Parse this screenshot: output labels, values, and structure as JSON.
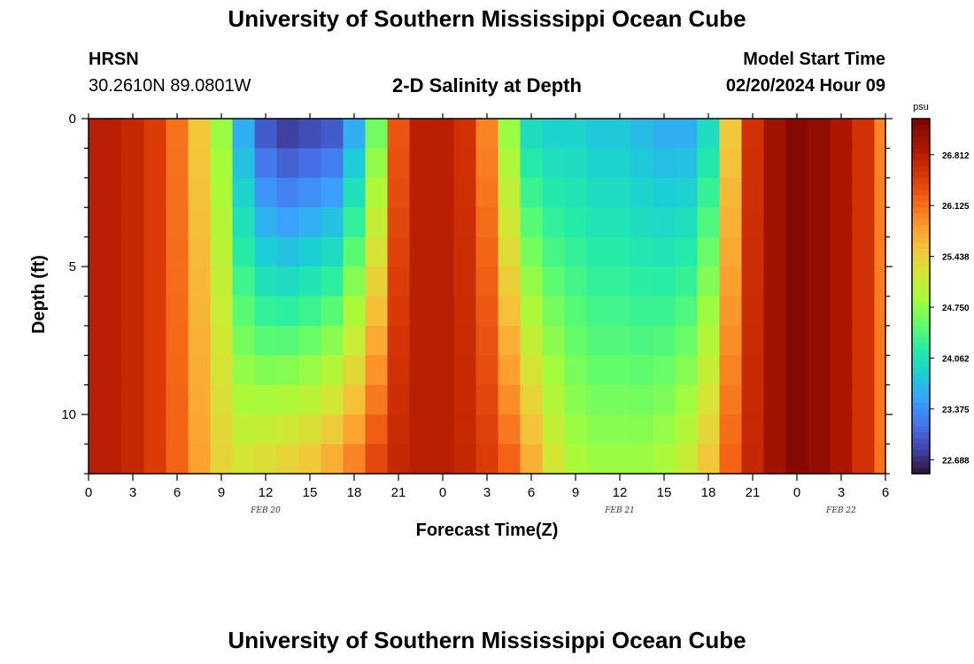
{
  "page": {
    "title": "University of Southern Mississippi Ocean Cube",
    "footer_title": "University of Southern Mississippi Ocean Cube",
    "station_id": "HRSN",
    "station_coords": "30.2610N  89.0801W",
    "subtitle": "2-D Salinity at Depth",
    "model_start_label": "Model Start Time",
    "model_start_value": "02/20/2024 Hour 09"
  },
  "chart_data": {
    "type": "heatmap",
    "title": "2-D Salinity at Depth",
    "xlabel": "Forecast Time(Z)",
    "ylabel": "Depth (ft)",
    "x_tick_labels": [
      "0",
      "3",
      "6",
      "9",
      "12",
      "15",
      "18",
      "21",
      "0",
      "3",
      "6",
      "9",
      "12",
      "15",
      "18",
      "21",
      "0",
      "3",
      "6"
    ],
    "x_range_hours": [
      0,
      54
    ],
    "date_labels": [
      {
        "label": "FEB 20",
        "hour": 12
      },
      {
        "label": "FEB 21",
        "hour": 36
      },
      {
        "label": "FEB 22",
        "hour": 51
      }
    ],
    "y_ticks": [
      0,
      5,
      10
    ],
    "y_range": [
      0,
      12
    ],
    "y_inverted": true,
    "colorbar": {
      "unit": "psu",
      "ticks": [
        "26.812",
        "26.125",
        "25.438",
        "24.750",
        "24.062",
        "23.375",
        "22.688"
      ],
      "min": 22.5,
      "max": 27.3,
      "colormap": "turbo"
    },
    "depth_levels_ft": [
      0.5,
      1.5,
      2.5,
      3.5,
      4.5,
      5.5,
      6.5,
      7.5,
      8.5,
      9.5,
      10.5,
      11.5
    ],
    "hours": [
      0,
      1.5,
      3,
      4.5,
      6,
      7.5,
      9,
      10.5,
      12,
      13.5,
      15,
      16.5,
      18,
      19.5,
      21,
      22.5,
      24,
      25.5,
      27,
      28.5,
      30,
      31.5,
      33,
      34.5,
      36,
      37.5,
      39,
      40.5,
      42,
      43.5,
      45,
      46.5,
      48,
      49.5,
      51,
      52.5,
      54
    ],
    "surface_salinity_psu": [
      26.8,
      26.8,
      26.7,
      26.5,
      26.1,
      25.5,
      24.8,
      23.6,
      23.0,
      22.8,
      22.9,
      23.0,
      23.6,
      24.6,
      26.3,
      26.8,
      26.8,
      26.6,
      26.0,
      24.8,
      24.0,
      23.9,
      23.9,
      23.8,
      23.8,
      23.7,
      23.6,
      23.6,
      24.0,
      25.5,
      26.6,
      27.0,
      27.2,
      27.1,
      26.9,
      26.6,
      26.0
    ],
    "bottom_salinity_psu": [
      26.8,
      26.8,
      26.7,
      26.5,
      26.2,
      25.8,
      25.4,
      25.2,
      25.3,
      25.4,
      25.5,
      25.7,
      26.0,
      26.4,
      26.7,
      26.8,
      26.8,
      26.7,
      26.5,
      26.2,
      25.7,
      25.2,
      24.9,
      24.8,
      24.8,
      24.8,
      24.9,
      25.1,
      25.5,
      26.2,
      26.7,
      27.0,
      27.2,
      27.1,
      26.9,
      26.6,
      26.1
    ]
  }
}
